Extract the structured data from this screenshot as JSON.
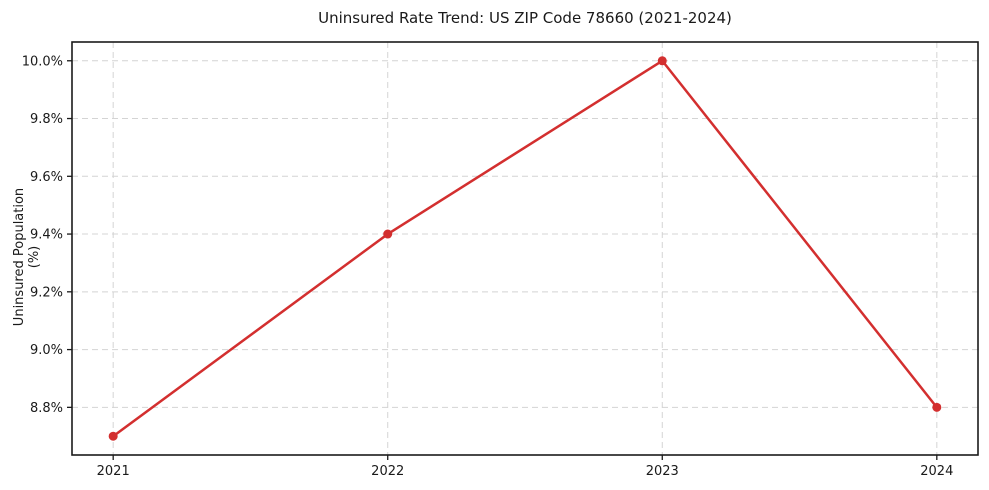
{
  "chart_data": {
    "type": "line",
    "title": "Uninsured Rate Trend: US ZIP Code 78660 (2021-2024)",
    "xlabel": "",
    "ylabel": "Uninsured Population (%)",
    "x": [
      2021,
      2022,
      2023,
      2024
    ],
    "x_tick_labels": [
      "2021",
      "2022",
      "2023",
      "2024"
    ],
    "series": [
      {
        "name": "Uninsured Rate",
        "values": [
          8.7,
          9.4,
          10.0,
          8.8
        ]
      }
    ],
    "y_ticks": [
      8.8,
      9.0,
      9.2,
      9.4,
      9.6,
      9.8,
      10.0
    ],
    "y_tick_labels": [
      "8.8%",
      "9.0%",
      "9.2%",
      "9.4%",
      "9.6%",
      "9.8%",
      "10.0%"
    ],
    "xlim": [
      2020.85,
      2024.15
    ],
    "ylim": [
      8.635,
      10.065
    ],
    "grid": true,
    "legend_position": "none",
    "line_color": "#d32f2f",
    "grid_color": "#d4d4d4",
    "axis_color": "#1a1a1a",
    "marker": "circle"
  }
}
